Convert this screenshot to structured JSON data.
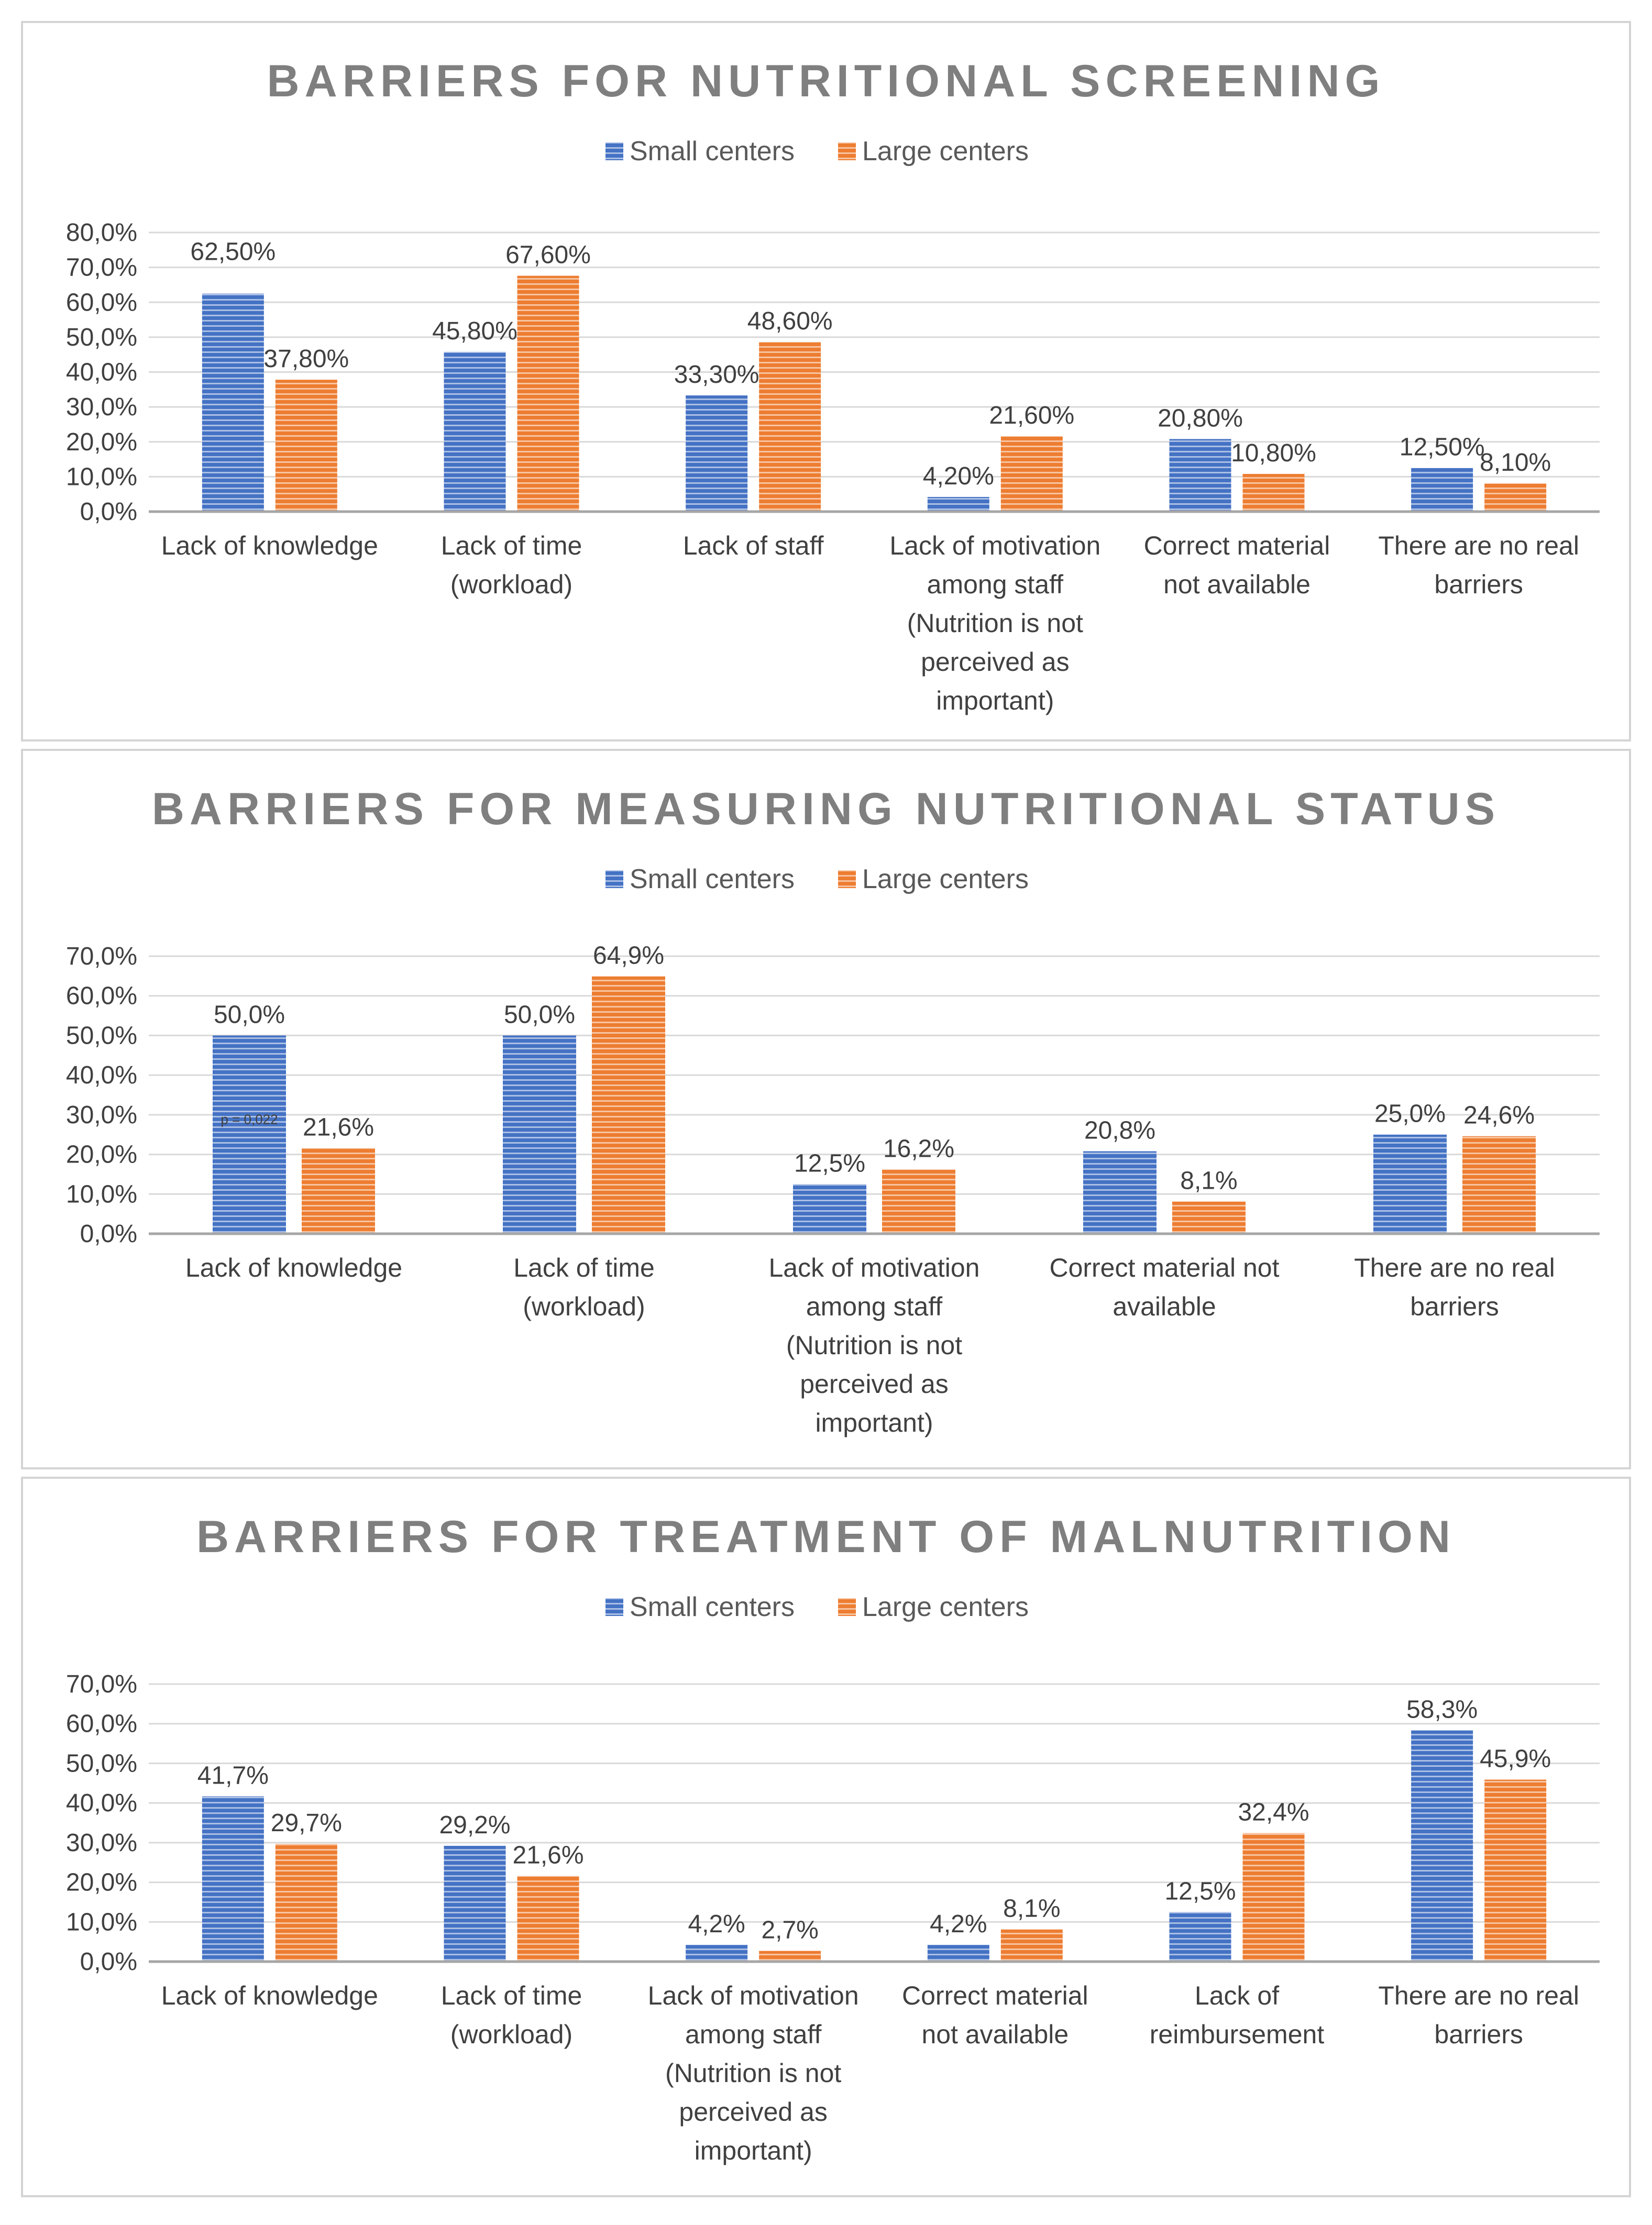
{
  "chart_data": [
    {
      "type": "bar",
      "title": "BARRIERS FOR NUTRITIONAL SCREENING",
      "legend": [
        "Small centers",
        "Large centers"
      ],
      "legend_position": "top-center",
      "ylim": [
        0,
        80
      ],
      "yticks": [
        "0,0%",
        "10,0%",
        "20,0%",
        "30,0%",
        "40,0%",
        "50,0%",
        "60,0%",
        "70,0%",
        "80,0%"
      ],
      "categories": [
        [
          "Lack of knowledge"
        ],
        [
          "Lack of time",
          "(workload)"
        ],
        [
          "Lack of staff"
        ],
        [
          "Lack of motivation",
          "among staff",
          "(Nutrition is not",
          "perceived as",
          "important)"
        ],
        [
          "Correct material",
          "not available"
        ],
        [
          "There are no real",
          "barriers"
        ]
      ],
      "series": [
        {
          "name": "Small centers",
          "color": "#4472c4",
          "values": [
            62.5,
            45.8,
            33.3,
            4.2,
            20.8,
            12.5
          ],
          "labels": [
            "62,50%",
            "45,80%",
            "33,30%",
            "4,20%",
            "20,80%",
            "12,50%"
          ]
        },
        {
          "name": "Large centers",
          "color": "#ed7d31",
          "values": [
            37.8,
            67.6,
            48.6,
            21.6,
            10.8,
            8.1
          ],
          "labels": [
            "37,80%",
            "67,60%",
            "48,60%",
            "21,60%",
            "10,80%",
            "8,10%"
          ]
        }
      ],
      "annotations": []
    },
    {
      "type": "bar",
      "title": "BARRIERS FOR MEASURING NUTRITIONAL STATUS",
      "legend": [
        "Small centers",
        "Large centers"
      ],
      "legend_position": "top-center",
      "ylim": [
        0,
        70
      ],
      "yticks": [
        "0,0%",
        "10,0%",
        "20,0%",
        "30,0%",
        "40,0%",
        "50,0%",
        "60,0%",
        "70,0%"
      ],
      "categories": [
        [
          "Lack of knowledge"
        ],
        [
          "Lack of time",
          "(workload)"
        ],
        [
          "Lack of motivation",
          "among staff",
          "(Nutrition is not",
          "perceived as",
          "important)"
        ],
        [
          "Correct material not",
          "available"
        ],
        [
          "There are no real",
          "barriers"
        ]
      ],
      "series": [
        {
          "name": "Small centers",
          "color": "#4472c4",
          "values": [
            50.0,
            50.0,
            12.5,
            20.8,
            25.0
          ],
          "labels": [
            "50,0%",
            "50,0%",
            "12,5%",
            "20,8%",
            "25,0%"
          ]
        },
        {
          "name": "Large centers",
          "color": "#ed7d31",
          "values": [
            21.6,
            64.9,
            16.2,
            8.1,
            24.6
          ],
          "labels": [
            "21,6%",
            "64,9%",
            "16,2%",
            "8,1%",
            "24,6%"
          ]
        }
      ],
      "annotations": [
        {
          "text": "p = 0,022",
          "category_index": 0,
          "y": 29
        }
      ]
    },
    {
      "type": "bar",
      "title": "BARRIERS FOR TREATMENT OF MALNUTRITION",
      "legend": [
        "Small centers",
        "Large centers"
      ],
      "legend_position": "top-center",
      "ylim": [
        0,
        70
      ],
      "yticks": [
        "0,0%",
        "10,0%",
        "20,0%",
        "30,0%",
        "40,0%",
        "50,0%",
        "60,0%",
        "70,0%"
      ],
      "categories": [
        [
          "Lack of knowledge"
        ],
        [
          "Lack of time",
          "(workload)"
        ],
        [
          "Lack of motivation",
          "among staff",
          "(Nutrition is not",
          "perceived as",
          "important)"
        ],
        [
          "Correct material",
          "not available"
        ],
        [
          "Lack of",
          "reimbursement"
        ],
        [
          "There are no real",
          "barriers"
        ]
      ],
      "series": [
        {
          "name": "Small centers",
          "color": "#4472c4",
          "values": [
            41.7,
            29.2,
            4.2,
            4.2,
            12.5,
            58.3
          ],
          "labels": [
            "41,7%",
            "29,2%",
            "4,2%",
            "4,2%",
            "12,5%",
            "58,3%"
          ]
        },
        {
          "name": "Large centers",
          "color": "#ed7d31",
          "values": [
            29.7,
            21.6,
            2.7,
            8.1,
            32.4,
            45.9
          ],
          "labels": [
            "29,7%",
            "21,6%",
            "2,7%",
            "8,1%",
            "32,4%",
            "45,9%"
          ]
        }
      ],
      "annotations": []
    }
  ]
}
